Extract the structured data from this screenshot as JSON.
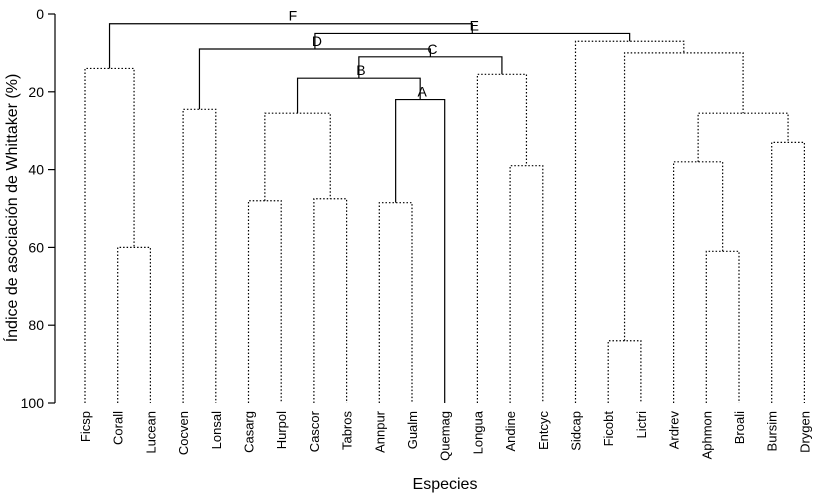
{
  "chart_data": {
    "type": "dendrogram",
    "ylabel": "Índice de asociación de Whittaker (%)",
    "xlabel": "Especies",
    "ylim": [
      0,
      100
    ],
    "yticks": [
      "0",
      "20",
      "40",
      "60",
      "80",
      "100"
    ],
    "leaves": [
      "Ficsp",
      "Corall",
      "Lucean",
      "Cocven",
      "Lonsal",
      "Casarg",
      "Hurpol",
      "Cascor",
      "Tabros",
      "Annpur",
      "Gualm",
      "Quemag",
      "Longua",
      "Andine",
      "Entcyc",
      "Sidcap",
      "Ficobt",
      "Lictri",
      "Ardrev",
      "Aphmon",
      "Broali",
      "Bursim",
      "Drygen"
    ],
    "merges": [
      {
        "id": "n1",
        "children": [
          "Corall",
          "Lucean"
        ],
        "height": 60,
        "style": "dotted"
      },
      {
        "id": "n2",
        "children": [
          "Ficsp",
          "n1"
        ],
        "height": 14,
        "style": "dotted"
      },
      {
        "id": "n3",
        "children": [
          "Cocven",
          "Lonsal"
        ],
        "height": 24.5,
        "style": "dotted"
      },
      {
        "id": "n4",
        "children": [
          "Casarg",
          "Hurpol"
        ],
        "height": 48,
        "style": "dotted"
      },
      {
        "id": "n5",
        "children": [
          "Cascor",
          "Tabros"
        ],
        "height": 47.5,
        "style": "dotted"
      },
      {
        "id": "n6",
        "children": [
          "n4",
          "n5"
        ],
        "height": 25.5,
        "style": "dotted"
      },
      {
        "id": "n7",
        "children": [
          "Annpur",
          "Gualm"
        ],
        "height": 48.5,
        "style": "dotted"
      },
      {
        "id": "n8",
        "children": [
          "n7",
          "Quemag"
        ],
        "height": 22,
        "style": "solid",
        "label": "A"
      },
      {
        "id": "n9",
        "children": [
          "n6",
          "n8"
        ],
        "height": 16.5,
        "style": "solid",
        "label": "B"
      },
      {
        "id": "n10",
        "children": [
          "Andine",
          "Entcyc"
        ],
        "height": 39,
        "style": "dotted"
      },
      {
        "id": "n11",
        "children": [
          "Longua",
          "n10"
        ],
        "height": 15.5,
        "style": "dotted"
      },
      {
        "id": "n12",
        "children": [
          "n9",
          "n11"
        ],
        "height": 11,
        "style": "solid",
        "label": "C"
      },
      {
        "id": "n13",
        "children": [
          "n3",
          "n12"
        ],
        "height": 9,
        "style": "solid",
        "label": "D"
      },
      {
        "id": "n14",
        "children": [
          "Ficobt",
          "Lictri"
        ],
        "height": 84,
        "style": "dotted"
      },
      {
        "id": "n15",
        "children": [
          "Aphmon",
          "Broali"
        ],
        "height": 61,
        "style": "dotted"
      },
      {
        "id": "n16",
        "children": [
          "Ardrev",
          "n15"
        ],
        "height": 38,
        "style": "dotted"
      },
      {
        "id": "n17",
        "children": [
          "Bursim",
          "Drygen"
        ],
        "height": 33,
        "style": "dotted"
      },
      {
        "id": "n18",
        "children": [
          "n16",
          "n17"
        ],
        "height": 25.5,
        "style": "dotted"
      },
      {
        "id": "n19",
        "children": [
          "n14",
          "n18"
        ],
        "height": 10,
        "style": "dotted"
      },
      {
        "id": "n20",
        "children": [
          "Sidcap",
          "n19"
        ],
        "height": 7,
        "style": "dotted"
      },
      {
        "id": "n21",
        "children": [
          "n13",
          "n20"
        ],
        "height": 5,
        "style": "solid",
        "label": "E"
      },
      {
        "id": "n22",
        "children": [
          "n2",
          "n21"
        ],
        "height": 2.5,
        "style": "solid",
        "label": "F"
      }
    ],
    "grid": false,
    "legend": "none"
  }
}
